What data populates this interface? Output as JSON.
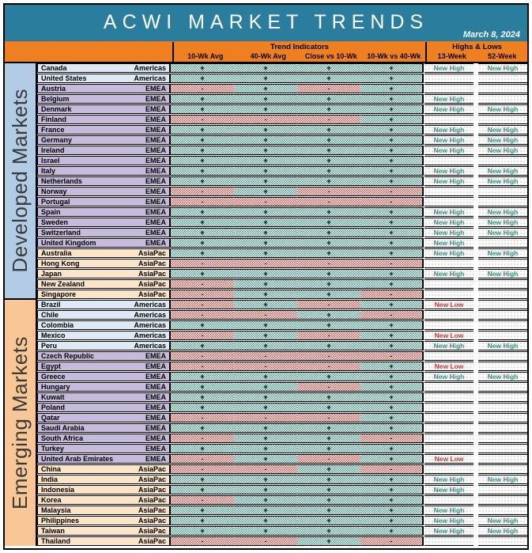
{
  "window": {
    "title": "ACWI MARKET TRENDS",
    "date": "March 8, 2024"
  },
  "table": {
    "group_headers": {
      "trend": "Trend Indicators",
      "highs_lows": "Highs & Lows"
    },
    "columns": {
      "trend": [
        "10-Wk Avg",
        "40-Wk Avg",
        "Close vs 10-Wk",
        "10-Wk vs 40-Wk"
      ],
      "highs_lows": [
        "13-Week",
        "52-Week"
      ]
    },
    "symbols": {
      "positive": "+",
      "negative": "-"
    }
  },
  "groups": [
    {
      "label": "Developed Markets",
      "rows": [
        {
          "country": "Canada",
          "region": "Americas",
          "signals": [
            "+",
            "+",
            "+",
            "+"
          ],
          "week13": "New High",
          "week52": "New High"
        },
        {
          "country": "United States",
          "region": "Americas",
          "signals": [
            "+",
            "+",
            "+",
            "+"
          ],
          "week13": "",
          "week52": ""
        },
        {
          "country": "Austria",
          "region": "EMEA",
          "signals": [
            "-",
            "+",
            "-",
            "+"
          ],
          "week13": "",
          "week52": ""
        },
        {
          "country": "Belgium",
          "region": "EMEA",
          "signals": [
            "+",
            "+",
            "+",
            "+"
          ],
          "week13": "New High",
          "week52": ""
        },
        {
          "country": "Denmark",
          "region": "EMEA",
          "signals": [
            "+",
            "+",
            "+",
            "+"
          ],
          "week13": "New High",
          "week52": "New High"
        },
        {
          "country": "Finland",
          "region": "EMEA",
          "signals": [
            "-",
            "-",
            "-",
            "+"
          ],
          "week13": "",
          "week52": ""
        },
        {
          "country": "France",
          "region": "EMEA",
          "signals": [
            "+",
            "+",
            "+",
            "+"
          ],
          "week13": "New High",
          "week52": "New High"
        },
        {
          "country": "Germany",
          "region": "EMEA",
          "signals": [
            "+",
            "+",
            "+",
            "+"
          ],
          "week13": "New High",
          "week52": "New High"
        },
        {
          "country": "Ireland",
          "region": "EMEA",
          "signals": [
            "+",
            "+",
            "+",
            "+"
          ],
          "week13": "New High",
          "week52": "New High"
        },
        {
          "country": "Israel",
          "region": "EMEA",
          "signals": [
            "+",
            "+",
            "+",
            "+"
          ],
          "week13": "",
          "week52": ""
        },
        {
          "country": "Italy",
          "region": "EMEA",
          "signals": [
            "+",
            "+",
            "+",
            "+"
          ],
          "week13": "New High",
          "week52": "New High"
        },
        {
          "country": "Netherlands",
          "region": "EMEA",
          "signals": [
            "+",
            "+",
            "+",
            "+"
          ],
          "week13": "New High",
          "week52": "New High"
        },
        {
          "country": "Norway",
          "region": "EMEA",
          "signals": [
            "-",
            "+",
            "-",
            "-"
          ],
          "week13": "",
          "week52": ""
        },
        {
          "country": "Portugal",
          "region": "EMEA",
          "signals": [
            "-",
            "-",
            "-",
            "-"
          ],
          "week13": "",
          "week52": ""
        },
        {
          "country": "Spain",
          "region": "EMEA",
          "signals": [
            "+",
            "+",
            "+",
            "+"
          ],
          "week13": "New High",
          "week52": "New High"
        },
        {
          "country": "Sweden",
          "region": "EMEA",
          "signals": [
            "+",
            "+",
            "+",
            "+"
          ],
          "week13": "New High",
          "week52": "New High"
        },
        {
          "country": "Switzerland",
          "region": "EMEA",
          "signals": [
            "+",
            "+",
            "+",
            "+"
          ],
          "week13": "New High",
          "week52": "New High"
        },
        {
          "country": "United Kingdom",
          "region": "EMEA",
          "signals": [
            "+",
            "+",
            "+",
            "+"
          ],
          "week13": "New High",
          "week52": ""
        },
        {
          "country": "Australia",
          "region": "AsiaPac",
          "signals": [
            "+",
            "+",
            "+",
            "+"
          ],
          "week13": "New High",
          "week52": "New High"
        },
        {
          "country": "Hong Kong",
          "region": "AsiaPac",
          "signals": [
            "-",
            "-",
            "-",
            "-"
          ],
          "week13": "",
          "week52": ""
        },
        {
          "country": "Japan",
          "region": "AsiaPac",
          "signals": [
            "+",
            "+",
            "+",
            "+"
          ],
          "week13": "New High",
          "week52": "New High"
        },
        {
          "country": "New Zealand",
          "region": "AsiaPac",
          "signals": [
            "-",
            "+",
            "+",
            "+"
          ],
          "week13": "",
          "week52": ""
        },
        {
          "country": "Singapore",
          "region": "AsiaPac",
          "signals": [
            "-",
            "+",
            "+",
            "-"
          ],
          "week13": "",
          "week52": ""
        }
      ]
    },
    {
      "label": "Emerging Markets",
      "rows": [
        {
          "country": "Brazil",
          "region": "Americas",
          "signals": [
            "-",
            "+",
            "-",
            "+"
          ],
          "week13": "New Low",
          "week52": ""
        },
        {
          "country": "Chile",
          "region": "Americas",
          "signals": [
            "-",
            "-",
            "+",
            "-"
          ],
          "week13": "",
          "week52": ""
        },
        {
          "country": "Colombia",
          "region": "Americas",
          "signals": [
            "+",
            "+",
            "+",
            "+"
          ],
          "week13": "",
          "week52": ""
        },
        {
          "country": "Mexico",
          "region": "Americas",
          "signals": [
            "-",
            "+",
            "-",
            "+"
          ],
          "week13": "New Low",
          "week52": ""
        },
        {
          "country": "Peru",
          "region": "Americas",
          "signals": [
            "+",
            "+",
            "+",
            "+"
          ],
          "week13": "New High",
          "week52": "New High"
        },
        {
          "country": "Czech Republic",
          "region": "EMEA",
          "signals": [
            "-",
            "-",
            "-",
            "-"
          ],
          "week13": "",
          "week52": ""
        },
        {
          "country": "Egypt",
          "region": "EMEA",
          "signals": [
            "-",
            "-",
            "-",
            "+"
          ],
          "week13": "New Low",
          "week52": ""
        },
        {
          "country": "Greece",
          "region": "EMEA",
          "signals": [
            "+",
            "+",
            "+",
            "+"
          ],
          "week13": "New High",
          "week52": "New High"
        },
        {
          "country": "Hungary",
          "region": "EMEA",
          "signals": [
            "+",
            "+",
            "-",
            "+"
          ],
          "week13": "",
          "week52": ""
        },
        {
          "country": "Kuwait",
          "region": "EMEA",
          "signals": [
            "+",
            "+",
            "+",
            "+"
          ],
          "week13": "",
          "week52": ""
        },
        {
          "country": "Poland",
          "region": "EMEA",
          "signals": [
            "+",
            "+",
            "+",
            "+"
          ],
          "week13": "",
          "week52": ""
        },
        {
          "country": "Qatar",
          "region": "EMEA",
          "signals": [
            "-",
            "-",
            "-",
            "+"
          ],
          "week13": "",
          "week52": ""
        },
        {
          "country": "Saudi Arabia",
          "region": "EMEA",
          "signals": [
            "+",
            "+",
            "+",
            "+"
          ],
          "week13": "",
          "week52": ""
        },
        {
          "country": "South Africa",
          "region": "EMEA",
          "signals": [
            "-",
            "+",
            "+",
            "-"
          ],
          "week13": "",
          "week52": ""
        },
        {
          "country": "Turkey",
          "region": "EMEA",
          "signals": [
            "+",
            "+",
            "+",
            "+"
          ],
          "week13": "",
          "week52": ""
        },
        {
          "country": "United Arab Emirates",
          "region": "EMEA",
          "signals": [
            "-",
            "+",
            "-",
            "+"
          ],
          "week13": "New Low",
          "week52": ""
        },
        {
          "country": "China",
          "region": "AsiaPac",
          "signals": [
            "-",
            "-",
            "+",
            "-"
          ],
          "week13": "",
          "week52": ""
        },
        {
          "country": "India",
          "region": "AsiaPac",
          "signals": [
            "+",
            "+",
            "+",
            "+"
          ],
          "week13": "New High",
          "week52": "New High"
        },
        {
          "country": "Indonesia",
          "region": "AsiaPac",
          "signals": [
            "+",
            "+",
            "+",
            "+"
          ],
          "week13": "New High",
          "week52": ""
        },
        {
          "country": "Korea",
          "region": "AsiaPac",
          "signals": [
            "-",
            "+",
            "+",
            "+"
          ],
          "week13": "",
          "week52": ""
        },
        {
          "country": "Malaysia",
          "region": "AsiaPac",
          "signals": [
            "+",
            "+",
            "+",
            "+"
          ],
          "week13": "New High",
          "week52": ""
        },
        {
          "country": "Philippines",
          "region": "AsiaPac",
          "signals": [
            "+",
            "+",
            "+",
            "+"
          ],
          "week13": "New High",
          "week52": "New High"
        },
        {
          "country": "Taiwan",
          "region": "AsiaPac",
          "signals": [
            "+",
            "+",
            "+",
            "+"
          ],
          "week13": "New High",
          "week52": "New High"
        },
        {
          "country": "Thailand",
          "region": "AsiaPac",
          "signals": [
            "-",
            "-",
            "+",
            "-"
          ],
          "week13": "",
          "week52": ""
        }
      ]
    }
  ],
  "colors": {
    "teal_header": "#2b7d9e",
    "orange_header": "#ef8021",
    "americas_row": "#dde9f5",
    "emea_row": "#c6bbdd",
    "asiapac_row": "#fce4c8",
    "developed_label_bg": "#b3cce6",
    "emerging_label_bg": "#f8c795",
    "positive_cell": "#4d9b8b",
    "negative_cell": "#c9574f",
    "new_high_text": "#2e9184",
    "new_low_text": "#c13a33"
  }
}
